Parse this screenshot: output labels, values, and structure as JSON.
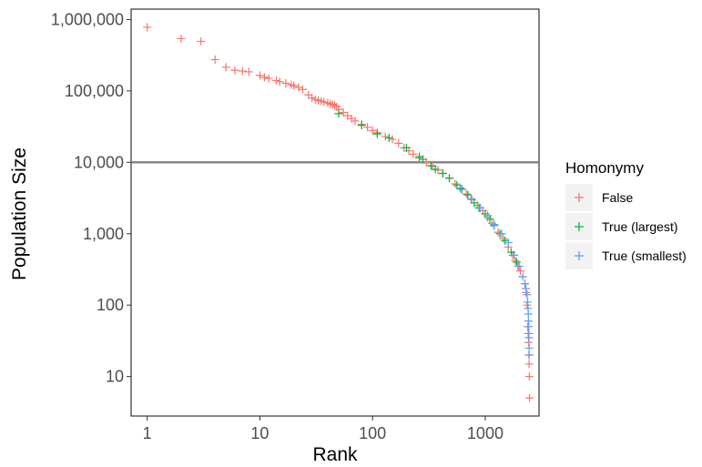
{
  "chart_data": {
    "type": "scatter",
    "x_scale": "log10",
    "y_scale": "log10",
    "xlabel": "Rank",
    "ylabel": "Population Size",
    "xlim": [
      0.72,
      3000
    ],
    "ylim": [
      2.8,
      1400000
    ],
    "x_ticks": [
      1,
      10,
      100,
      1000
    ],
    "x_tick_labels": [
      "1",
      "10",
      "100",
      "1000"
    ],
    "y_ticks": [
      10,
      100,
      1000,
      10000,
      100000,
      1000000
    ],
    "y_tick_labels": [
      "10",
      "100",
      "1,000",
      "10,000",
      "100,000",
      "1,000,000"
    ],
    "grid": false,
    "reference_line": {
      "y": 10000,
      "color": "#808080"
    },
    "marker": "plus",
    "legend": {
      "title": "Homonymy",
      "position": "right",
      "entries": [
        {
          "label": "False",
          "color": "#F8766D"
        },
        {
          "label": "True (largest)",
          "color": "#00BA38"
        },
        {
          "label": "True (smallest)",
          "color": "#619CFF"
        }
      ]
    },
    "series": [
      {
        "name": "False",
        "color": "#F8766D",
        "points": [
          [
            1,
            780000
          ],
          [
            2,
            540000
          ],
          [
            3,
            495000
          ],
          [
            4,
            275000
          ],
          [
            5,
            215000
          ],
          [
            6,
            195000
          ],
          [
            7,
            190000
          ],
          [
            8,
            185000
          ],
          [
            10,
            165000
          ],
          [
            11,
            155000
          ],
          [
            12,
            150000
          ],
          [
            14,
            140000
          ],
          [
            15,
            135000
          ],
          [
            17,
            128000
          ],
          [
            19,
            122000
          ],
          [
            20,
            118000
          ],
          [
            22,
            112000
          ],
          [
            24,
            105000
          ],
          [
            27,
            88000
          ],
          [
            29,
            80000
          ],
          [
            31,
            76000
          ],
          [
            33,
            74000
          ],
          [
            35,
            72000
          ],
          [
            37,
            70000
          ],
          [
            40,
            68000
          ],
          [
            42,
            66000
          ],
          [
            44,
            65000
          ],
          [
            46,
            63000
          ],
          [
            48,
            60000
          ],
          [
            50,
            55000
          ],
          [
            55,
            50000
          ],
          [
            60,
            45000
          ],
          [
            65,
            41000
          ],
          [
            70,
            38000
          ],
          [
            80,
            34000
          ],
          [
            90,
            31000
          ],
          [
            100,
            28000
          ],
          [
            110,
            26000
          ],
          [
            130,
            23000
          ],
          [
            150,
            21000
          ],
          [
            170,
            18500
          ],
          [
            190,
            16000
          ],
          [
            210,
            14500
          ],
          [
            230,
            13000
          ],
          [
            260,
            11500
          ],
          [
            300,
            10000
          ],
          [
            340,
            8800
          ],
          [
            380,
            7800
          ],
          [
            420,
            7000
          ],
          [
            480,
            6000
          ],
          [
            540,
            5000
          ],
          [
            600,
            4300
          ],
          [
            680,
            3600
          ],
          [
            760,
            3000
          ],
          [
            850,
            2500
          ],
          [
            950,
            2100
          ],
          [
            1050,
            1700
          ],
          [
            1150,
            1400
          ],
          [
            1300,
            1050
          ],
          [
            1450,
            850
          ],
          [
            1600,
            650
          ],
          [
            1750,
            500
          ],
          [
            1850,
            420
          ],
          [
            1950,
            350
          ],
          [
            2050,
            300
          ],
          [
            2150,
            250
          ],
          [
            2250,
            200
          ],
          [
            2300,
            150
          ],
          [
            2350,
            100
          ],
          [
            2380,
            50
          ],
          [
            2400,
            40
          ],
          [
            2420,
            30
          ],
          [
            2440,
            20
          ],
          [
            2450,
            15
          ],
          [
            2460,
            10
          ],
          [
            2470,
            5
          ]
        ]
      },
      {
        "name": "True (largest)",
        "color": "#00BA38",
        "points": [
          [
            50,
            48000
          ],
          [
            80,
            33000
          ],
          [
            110,
            25000
          ],
          [
            140,
            22000
          ],
          [
            200,
            16000
          ],
          [
            260,
            12000
          ],
          [
            280,
            11000
          ],
          [
            330,
            9000
          ],
          [
            360,
            8000
          ],
          [
            420,
            7000
          ],
          [
            480,
            6000
          ],
          [
            560,
            4800
          ],
          [
            620,
            4200
          ],
          [
            700,
            3500
          ],
          [
            800,
            2700
          ],
          [
            880,
            2300
          ],
          [
            1000,
            1900
          ],
          [
            1100,
            1600
          ],
          [
            1200,
            1300
          ],
          [
            1350,
            1000
          ],
          [
            1500,
            800
          ],
          [
            1700,
            550
          ],
          [
            1900,
            400
          ]
        ]
      },
      {
        "name": "True (smallest)",
        "color": "#619CFF",
        "points": [
          [
            600,
            4400
          ],
          [
            750,
            3100
          ],
          [
            900,
            2300
          ],
          [
            1050,
            1800
          ],
          [
            1200,
            1350
          ],
          [
            1400,
            1000
          ],
          [
            1600,
            750
          ],
          [
            1800,
            500
          ],
          [
            2000,
            350
          ],
          [
            2150,
            250
          ],
          [
            2250,
            200
          ],
          [
            2300,
            170
          ],
          [
            2350,
            140
          ],
          [
            2380,
            110
          ],
          [
            2400,
            90
          ],
          [
            2410,
            75
          ],
          [
            2420,
            60
          ],
          [
            2430,
            50
          ],
          [
            2440,
            40
          ],
          [
            2445,
            35
          ],
          [
            2450,
            25
          ],
          [
            2455,
            20
          ]
        ]
      }
    ]
  }
}
